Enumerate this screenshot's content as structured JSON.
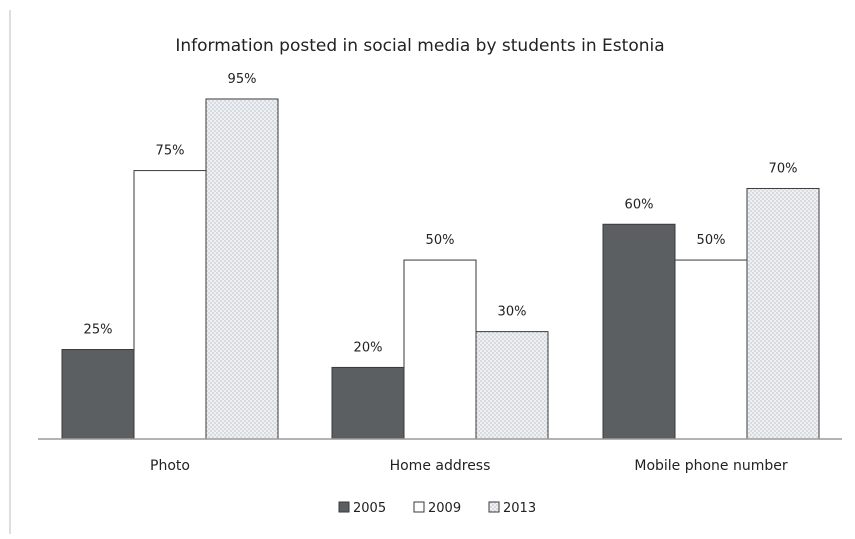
{
  "chart_data": {
    "type": "bar",
    "title": "Information posted in social media by students in Estonia",
    "categories": [
      "Photo",
      "Home address",
      "Mobile phone number"
    ],
    "series": [
      {
        "name": "2005",
        "values": [
          25,
          20,
          60
        ],
        "labels": [
          "25%",
          "20%",
          "60%"
        ]
      },
      {
        "name": "2009",
        "values": [
          75,
          50,
          50
        ],
        "labels": [
          "75%",
          "50%",
          "50%"
        ]
      },
      {
        "name": "2013",
        "values": [
          95,
          30,
          70
        ],
        "labels": [
          "95%",
          "30%",
          "70%"
        ]
      }
    ],
    "ylim": [
      0,
      100
    ],
    "grid": false,
    "legend_position": "bottom",
    "colors": {
      "2005": "#5b5f61",
      "2009": "#ffffff",
      "2013": "#eceef1",
      "outline": "#3a3a3a",
      "axis": "#9a9a9a"
    }
  }
}
